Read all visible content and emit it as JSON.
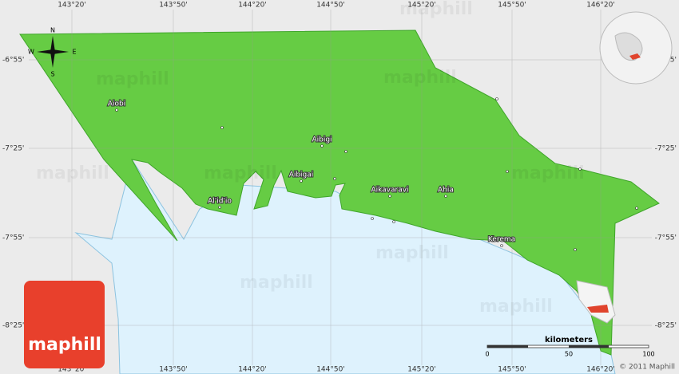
{
  "map": {
    "lon_labels": [
      "143°20'",
      "143°50'",
      "144°20'",
      "144°50'",
      "145°20'",
      "145°50'",
      "146°20'"
    ],
    "lat_labels": [
      "-6°55'",
      "-7°25'",
      "-7°55'",
      "-8°25'"
    ],
    "places": [
      "Aiobi",
      "Aibigi",
      "Aibigai",
      "Al'id'io",
      "Aikavaravi",
      "Ahia",
      "Kerema"
    ],
    "compass": {
      "north": "N",
      "south": "S",
      "west": "W",
      "east": "E"
    },
    "scale": {
      "title": "kilometers",
      "ticks": [
        "0",
        "50",
        "100"
      ]
    },
    "watermark": "maphill",
    "logo": "maphill",
    "copyright": "© 2011 Maphill"
  }
}
